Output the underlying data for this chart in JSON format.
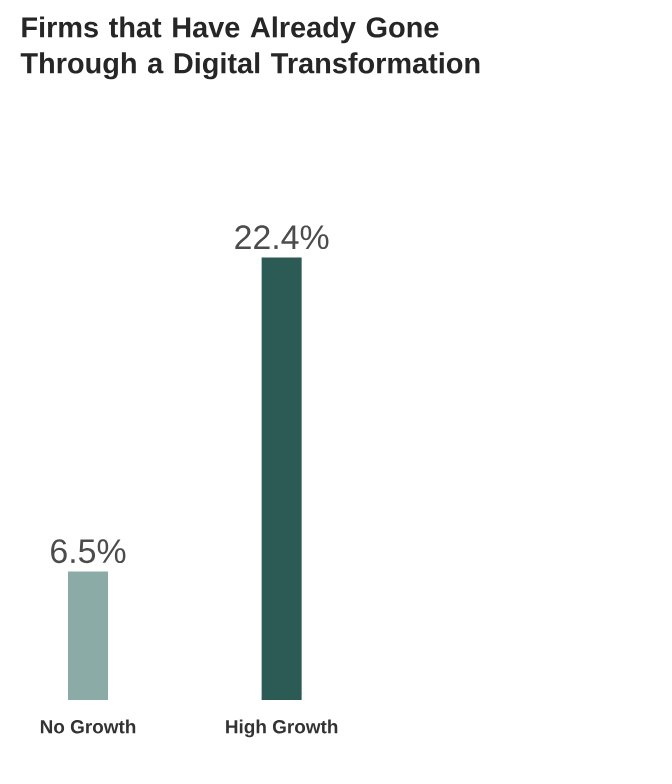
{
  "chart_data": {
    "type": "bar",
    "title": "Firms that Have Already Gone Through a Digital Transformation",
    "categories": [
      "No Growth",
      "High Growth"
    ],
    "values": [
      6.5,
      22.4
    ],
    "colors": [
      "#8aaba6",
      "#2c5a55"
    ],
    "value_labels": [
      "6.5%",
      "22.4%"
    ]
  }
}
